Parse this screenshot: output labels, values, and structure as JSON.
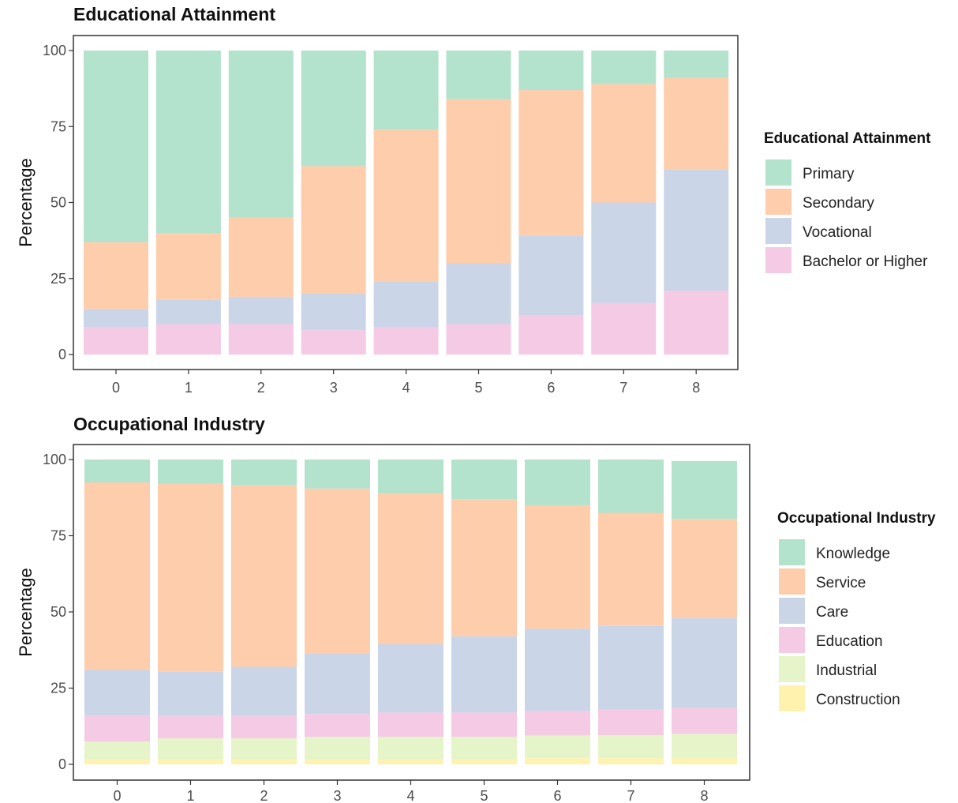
{
  "chart_data": [
    {
      "type": "bar",
      "stacked": true,
      "title": "Educational Attainment",
      "xlabel": "",
      "ylabel": "Percentage",
      "ylim": [
        0,
        100
      ],
      "yticks": [
        0,
        25,
        50,
        75,
        100
      ],
      "categories": [
        "0",
        "1",
        "2",
        "3",
        "4",
        "5",
        "6",
        "7",
        "8"
      ],
      "legend_title": "Educational Attainment",
      "legend_position": "right",
      "grid": false,
      "series": [
        {
          "name": "Primary",
          "color": "#b3e2cd",
          "values": [
            63,
            60,
            55,
            38,
            26,
            16,
            13,
            11,
            9
          ]
        },
        {
          "name": "Secondary",
          "color": "#fdcdac",
          "values": [
            22,
            22,
            26,
            42,
            50,
            54,
            48,
            39,
            30
          ]
        },
        {
          "name": "Vocational",
          "color": "#cbd5e8",
          "values": [
            6,
            8,
            9,
            12,
            15,
            20,
            26,
            33,
            40
          ]
        },
        {
          "name": "Bachelor or Higher",
          "color": "#f4cae4",
          "values": [
            9,
            10,
            10,
            8,
            9,
            10,
            13,
            17,
            21
          ]
        }
      ]
    },
    {
      "type": "bar",
      "stacked": true,
      "title": "Occupational Industry",
      "xlabel": "",
      "ylabel": "Percentage",
      "ylim": [
        0,
        100
      ],
      "yticks": [
        0,
        25,
        50,
        75,
        100
      ],
      "categories": [
        "0",
        "1",
        "2",
        "3",
        "4",
        "5",
        "6",
        "7",
        "8"
      ],
      "legend_title": "Occupational Industry",
      "legend_position": "right",
      "grid": false,
      "series": [
        {
          "name": "Knowledge",
          "color": "#b3e2cd",
          "values": [
            7.5,
            8,
            8.5,
            9.5,
            11,
            13,
            15,
            17.5,
            19
          ]
        },
        {
          "name": "Service",
          "color": "#fdcdac",
          "values": [
            61.5,
            61.5,
            59.5,
            54,
            49.5,
            45,
            40.5,
            37,
            32.5
          ]
        },
        {
          "name": "Care",
          "color": "#cbd5e8",
          "values": [
            15,
            14.5,
            16,
            20,
            22.5,
            25,
            27,
            27.5,
            29.5
          ]
        },
        {
          "name": "Education",
          "color": "#f4cae4",
          "values": [
            8.5,
            7.5,
            7.5,
            7.5,
            8,
            8,
            8,
            8.5,
            8.5
          ]
        },
        {
          "name": "Industrial",
          "color": "#e6f5c9",
          "values": [
            6,
            7,
            7,
            7.5,
            7.5,
            7.5,
            7.5,
            7.5,
            8
          ]
        },
        {
          "name": "Construction",
          "color": "#fff2ae",
          "values": [
            1.5,
            1.5,
            1.5,
            1.5,
            1.5,
            1.5,
            2,
            2,
            2
          ]
        }
      ]
    }
  ]
}
